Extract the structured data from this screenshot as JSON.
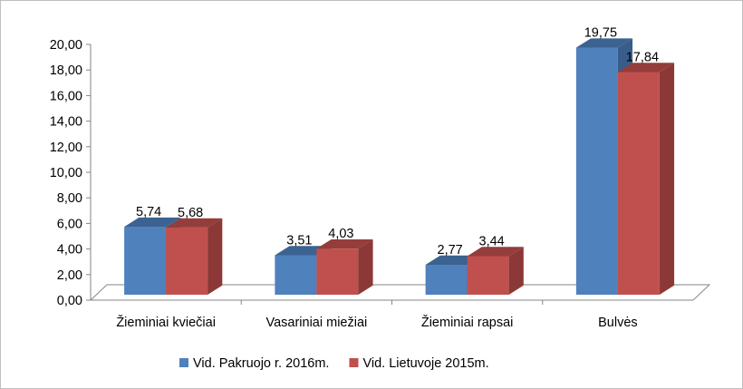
{
  "chart_data": {
    "type": "bar",
    "title": "",
    "xlabel": "",
    "ylabel": "",
    "categories": [
      "Žieminiai kviečiai",
      "Vasariniai miežiai",
      "Žieminiai rapsai",
      "Bulvės"
    ],
    "series": [
      {
        "name": "Vid. Pakruojo r. 2016m.",
        "values": [
          5.74,
          3.51,
          2.77,
          19.75
        ],
        "labels": [
          "5,74",
          "3,51",
          "2,77",
          "19,75"
        ]
      },
      {
        "name": "Vid. Lietuvoje 2015m.",
        "values": [
          5.68,
          4.03,
          3.44,
          17.84
        ],
        "labels": [
          "5,68",
          "4,03",
          "3,44",
          "17,84"
        ]
      }
    ],
    "ylim": [
      0,
      20
    ],
    "yticks": [
      "0,00",
      "2,00",
      "4,00",
      "6,00",
      "8,00",
      "10,00",
      "12,00",
      "14,00",
      "16,00",
      "18,00",
      "20,00"
    ],
    "legend": "bottom",
    "grid": false
  },
  "colors": {
    "series": [
      "#4f81bd",
      "#c0504d"
    ],
    "series_side": [
      "#385d8a",
      "#8c3836"
    ],
    "series_top": [
      "#3b6291",
      "#943d3b"
    ],
    "axis": "#868686"
  }
}
